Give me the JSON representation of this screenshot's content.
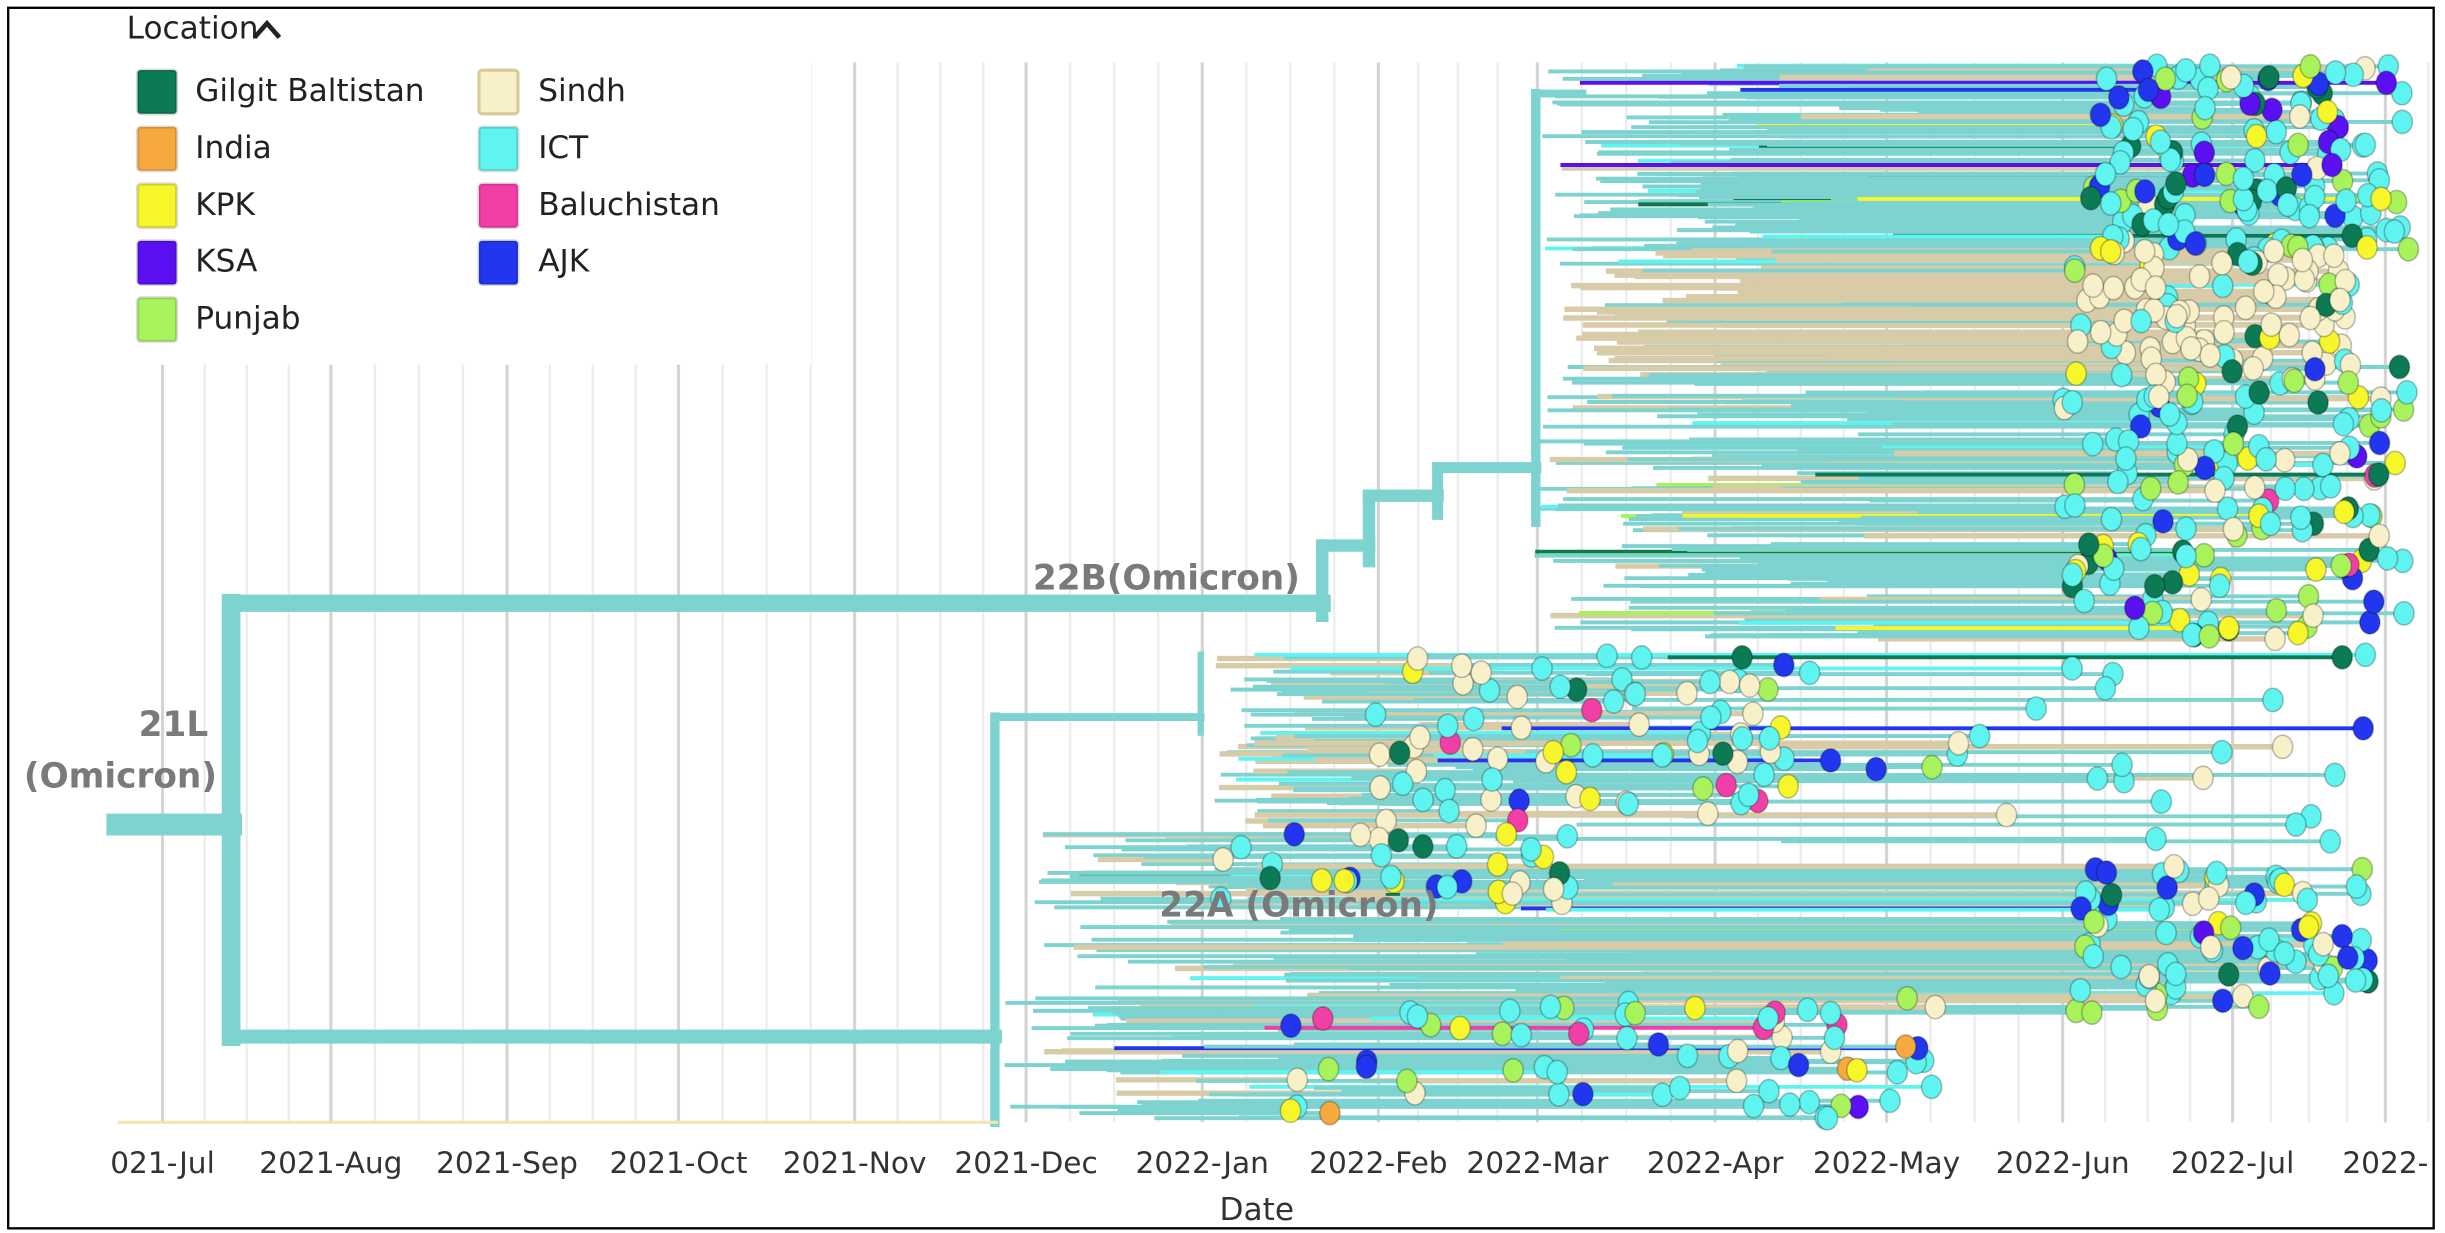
{
  "legend": {
    "title": "Location",
    "items": [
      {
        "name": "Gilgit Baltistan",
        "color": "#0b7a55"
      },
      {
        "name": "India",
        "color": "#f7a83e"
      },
      {
        "name": "KPK",
        "color": "#f6f62a"
      },
      {
        "name": "KSA",
        "color": "#5a10f0"
      },
      {
        "name": "Punjab",
        "color": "#a8f25c"
      },
      {
        "name": "Sindh",
        "color": "#f7f0c8"
      },
      {
        "name": "ICT",
        "color": "#5ff4f0"
      },
      {
        "name": "Baluchistan",
        "color": "#f23fa8"
      },
      {
        "name": "AJK",
        "color": "#2236f0"
      }
    ]
  },
  "clades": [
    "21L",
    "(Omicron)",
    "22B(Omicron)",
    "22A (Omicron)"
  ],
  "axis": {
    "label": "Date",
    "ticks": [
      "021-Jul",
      "2021-Aug",
      "2021-Sep",
      "2021-Oct",
      "2021-Nov",
      "2021-Dec",
      "2022-Jan",
      "2022-Feb",
      "2022-Mar",
      "2022-Apr",
      "2022-May",
      "2022-Jun",
      "2022-Jul",
      "2022-"
    ]
  }
}
